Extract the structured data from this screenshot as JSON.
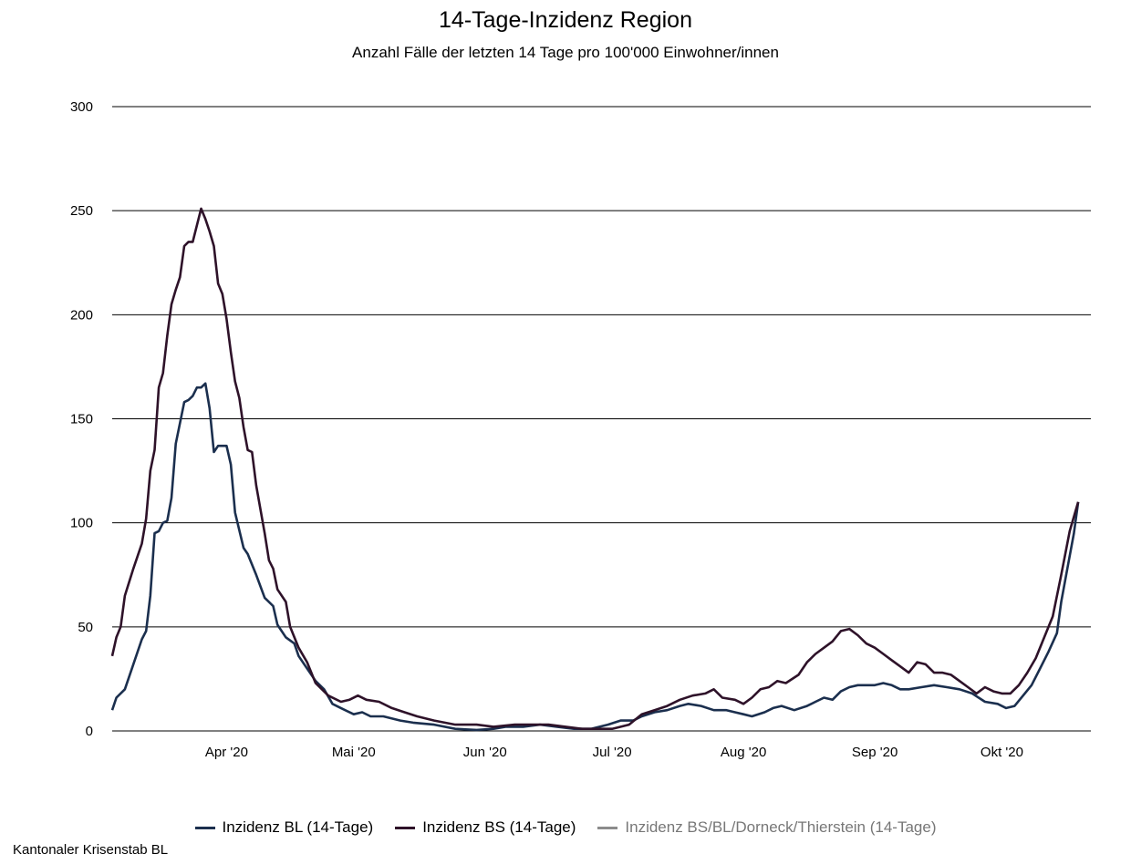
{
  "chart_data": {
    "type": "line",
    "title": "14-Tage-Inzidenz Region",
    "subtitle": "Anzahl Fälle der letzten 14 Tage pro 100'000 Einwohner/innen",
    "xlabel": "",
    "ylabel": "",
    "x_range": [
      "2020-03-05",
      "2020-10-22"
    ],
    "ylim": [
      0,
      300
    ],
    "y_ticks": [
      0,
      50,
      100,
      150,
      200,
      250,
      300
    ],
    "x_ticks": [
      {
        "date": "2020-04-01",
        "label": "Apr '20"
      },
      {
        "date": "2020-05-01",
        "label": "Mai '20"
      },
      {
        "date": "2020-06-01",
        "label": "Jun '20"
      },
      {
        "date": "2020-07-01",
        "label": "Jul '20"
      },
      {
        "date": "2020-08-01",
        "label": "Aug '20"
      },
      {
        "date": "2020-09-01",
        "label": "Sep '20"
      },
      {
        "date": "2020-10-01",
        "label": "Okt '20"
      }
    ],
    "grid": "horizontal",
    "legend_position": "bottom",
    "series": [
      {
        "name": "Inzidenz BL (14-Tage)",
        "color": "#1b2f4e",
        "points": [
          [
            "2020-03-05",
            10
          ],
          [
            "2020-03-06",
            16
          ],
          [
            "2020-03-08",
            20
          ],
          [
            "2020-03-10",
            32
          ],
          [
            "2020-03-12",
            44
          ],
          [
            "2020-03-13",
            48
          ],
          [
            "2020-03-14",
            65
          ],
          [
            "2020-03-15",
            95
          ],
          [
            "2020-03-16",
            96
          ],
          [
            "2020-03-17",
            100
          ],
          [
            "2020-03-18",
            101
          ],
          [
            "2020-03-19",
            112
          ],
          [
            "2020-03-20",
            138
          ],
          [
            "2020-03-22",
            158
          ],
          [
            "2020-03-23",
            159
          ],
          [
            "2020-03-24",
            161
          ],
          [
            "2020-03-25",
            165
          ],
          [
            "2020-03-26",
            165
          ],
          [
            "2020-03-27",
            167
          ],
          [
            "2020-03-28",
            155
          ],
          [
            "2020-03-29",
            134
          ],
          [
            "2020-03-30",
            137
          ],
          [
            "2020-04-01",
            137
          ],
          [
            "2020-04-02",
            128
          ],
          [
            "2020-04-03",
            105
          ],
          [
            "2020-04-05",
            88
          ],
          [
            "2020-04-06",
            85
          ],
          [
            "2020-04-08",
            75
          ],
          [
            "2020-04-10",
            64
          ],
          [
            "2020-04-12",
            60
          ],
          [
            "2020-04-13",
            51
          ],
          [
            "2020-04-15",
            45
          ],
          [
            "2020-04-17",
            42
          ],
          [
            "2020-04-18",
            36
          ],
          [
            "2020-04-20",
            30
          ],
          [
            "2020-04-22",
            24
          ],
          [
            "2020-04-24",
            20
          ],
          [
            "2020-04-26",
            13
          ],
          [
            "2020-04-28",
            11
          ],
          [
            "2020-05-01",
            8
          ],
          [
            "2020-05-03",
            9
          ],
          [
            "2020-05-05",
            7
          ],
          [
            "2020-05-08",
            7
          ],
          [
            "2020-05-12",
            5
          ],
          [
            "2020-05-15",
            4
          ],
          [
            "2020-05-20",
            3
          ],
          [
            "2020-05-25",
            1
          ],
          [
            "2020-05-30",
            0.5
          ],
          [
            "2020-06-03",
            1
          ],
          [
            "2020-06-06",
            2
          ],
          [
            "2020-06-10",
            2
          ],
          [
            "2020-06-14",
            3
          ],
          [
            "2020-06-18",
            2
          ],
          [
            "2020-06-22",
            1
          ],
          [
            "2020-06-26",
            1
          ],
          [
            "2020-06-30",
            3
          ],
          [
            "2020-07-03",
            5
          ],
          [
            "2020-07-06",
            5
          ],
          [
            "2020-07-08",
            7
          ],
          [
            "2020-07-11",
            9
          ],
          [
            "2020-07-14",
            10
          ],
          [
            "2020-07-17",
            12
          ],
          [
            "2020-07-19",
            13
          ],
          [
            "2020-07-22",
            12
          ],
          [
            "2020-07-25",
            10
          ],
          [
            "2020-07-28",
            10
          ],
          [
            "2020-07-30",
            9
          ],
          [
            "2020-08-01",
            8
          ],
          [
            "2020-08-03",
            7
          ],
          [
            "2020-08-06",
            9
          ],
          [
            "2020-08-08",
            11
          ],
          [
            "2020-08-10",
            12
          ],
          [
            "2020-08-13",
            10
          ],
          [
            "2020-08-16",
            12
          ],
          [
            "2020-08-18",
            14
          ],
          [
            "2020-08-20",
            16
          ],
          [
            "2020-08-22",
            15
          ],
          [
            "2020-08-24",
            19
          ],
          [
            "2020-08-26",
            21
          ],
          [
            "2020-08-28",
            22
          ],
          [
            "2020-08-30",
            22
          ],
          [
            "2020-09-01",
            22
          ],
          [
            "2020-09-03",
            23
          ],
          [
            "2020-09-05",
            22
          ],
          [
            "2020-09-07",
            20
          ],
          [
            "2020-09-09",
            20
          ],
          [
            "2020-09-12",
            21
          ],
          [
            "2020-09-15",
            22
          ],
          [
            "2020-09-18",
            21
          ],
          [
            "2020-09-21",
            20
          ],
          [
            "2020-09-24",
            18
          ],
          [
            "2020-09-27",
            14
          ],
          [
            "2020-09-30",
            13
          ],
          [
            "2020-10-02",
            11
          ],
          [
            "2020-10-04",
            12
          ],
          [
            "2020-10-06",
            17
          ],
          [
            "2020-10-08",
            22
          ],
          [
            "2020-10-10",
            30
          ],
          [
            "2020-10-12",
            38
          ],
          [
            "2020-10-14",
            47
          ],
          [
            "2020-10-15",
            62
          ],
          [
            "2020-10-16",
            73
          ],
          [
            "2020-10-18",
            95
          ],
          [
            "2020-10-19",
            110
          ]
        ]
      },
      {
        "name": "Inzidenz BS (14-Tage)",
        "color": "#2e1229",
        "points": [
          [
            "2020-03-05",
            36
          ],
          [
            "2020-03-06",
            45
          ],
          [
            "2020-03-07",
            50
          ],
          [
            "2020-03-08",
            65
          ],
          [
            "2020-03-10",
            78
          ],
          [
            "2020-03-12",
            90
          ],
          [
            "2020-03-13",
            102
          ],
          [
            "2020-03-14",
            125
          ],
          [
            "2020-03-15",
            135
          ],
          [
            "2020-03-16",
            165
          ],
          [
            "2020-03-17",
            172
          ],
          [
            "2020-03-18",
            190
          ],
          [
            "2020-03-19",
            205
          ],
          [
            "2020-03-20",
            212
          ],
          [
            "2020-03-21",
            218
          ],
          [
            "2020-03-22",
            233
          ],
          [
            "2020-03-23",
            235
          ],
          [
            "2020-03-24",
            235
          ],
          [
            "2020-03-26",
            251
          ],
          [
            "2020-03-27",
            246
          ],
          [
            "2020-03-28",
            240
          ],
          [
            "2020-03-29",
            233
          ],
          [
            "2020-03-30",
            215
          ],
          [
            "2020-03-31",
            210
          ],
          [
            "2020-04-01",
            198
          ],
          [
            "2020-04-02",
            182
          ],
          [
            "2020-04-03",
            168
          ],
          [
            "2020-04-04",
            160
          ],
          [
            "2020-04-05",
            146
          ],
          [
            "2020-04-06",
            135
          ],
          [
            "2020-04-07",
            134
          ],
          [
            "2020-04-08",
            118
          ],
          [
            "2020-04-10",
            95
          ],
          [
            "2020-04-11",
            82
          ],
          [
            "2020-04-12",
            78
          ],
          [
            "2020-04-13",
            68
          ],
          [
            "2020-04-15",
            62
          ],
          [
            "2020-04-16",
            50
          ],
          [
            "2020-04-18",
            40
          ],
          [
            "2020-04-20",
            33
          ],
          [
            "2020-04-22",
            23
          ],
          [
            "2020-04-25",
            17
          ],
          [
            "2020-04-28",
            14
          ],
          [
            "2020-04-30",
            15
          ],
          [
            "2020-05-02",
            17
          ],
          [
            "2020-05-04",
            15
          ],
          [
            "2020-05-07",
            14
          ],
          [
            "2020-05-10",
            11
          ],
          [
            "2020-05-13",
            9
          ],
          [
            "2020-05-16",
            7
          ],
          [
            "2020-05-20",
            5
          ],
          [
            "2020-05-25",
            3
          ],
          [
            "2020-05-30",
            3
          ],
          [
            "2020-06-03",
            2
          ],
          [
            "2020-06-08",
            3
          ],
          [
            "2020-06-12",
            3
          ],
          [
            "2020-06-16",
            3
          ],
          [
            "2020-06-20",
            2
          ],
          [
            "2020-06-24",
            1
          ],
          [
            "2020-06-28",
            1
          ],
          [
            "2020-07-01",
            1
          ],
          [
            "2020-07-05",
            3
          ],
          [
            "2020-07-08",
            8
          ],
          [
            "2020-07-11",
            10
          ],
          [
            "2020-07-14",
            12
          ],
          [
            "2020-07-17",
            15
          ],
          [
            "2020-07-20",
            17
          ],
          [
            "2020-07-23",
            18
          ],
          [
            "2020-07-25",
            20
          ],
          [
            "2020-07-27",
            16
          ],
          [
            "2020-07-30",
            15
          ],
          [
            "2020-08-01",
            13
          ],
          [
            "2020-08-03",
            16
          ],
          [
            "2020-08-05",
            20
          ],
          [
            "2020-08-07",
            21
          ],
          [
            "2020-08-09",
            24
          ],
          [
            "2020-08-11",
            23
          ],
          [
            "2020-08-14",
            27
          ],
          [
            "2020-08-16",
            33
          ],
          [
            "2020-08-18",
            37
          ],
          [
            "2020-08-20",
            40
          ],
          [
            "2020-08-22",
            43
          ],
          [
            "2020-08-24",
            48
          ],
          [
            "2020-08-26",
            49
          ],
          [
            "2020-08-28",
            46
          ],
          [
            "2020-08-30",
            42
          ],
          [
            "2020-09-01",
            40
          ],
          [
            "2020-09-03",
            37
          ],
          [
            "2020-09-05",
            34
          ],
          [
            "2020-09-07",
            31
          ],
          [
            "2020-09-09",
            28
          ],
          [
            "2020-09-11",
            33
          ],
          [
            "2020-09-13",
            32
          ],
          [
            "2020-09-15",
            28
          ],
          [
            "2020-09-17",
            28
          ],
          [
            "2020-09-19",
            27
          ],
          [
            "2020-09-21",
            24
          ],
          [
            "2020-09-23",
            21
          ],
          [
            "2020-09-25",
            18
          ],
          [
            "2020-09-27",
            21
          ],
          [
            "2020-09-29",
            19
          ],
          [
            "2020-10-01",
            18
          ],
          [
            "2020-10-03",
            18
          ],
          [
            "2020-10-05",
            22
          ],
          [
            "2020-10-07",
            28
          ],
          [
            "2020-10-09",
            35
          ],
          [
            "2020-10-11",
            45
          ],
          [
            "2020-10-13",
            55
          ],
          [
            "2020-10-15",
            75
          ],
          [
            "2020-10-17",
            96
          ],
          [
            "2020-10-19",
            110
          ]
        ]
      },
      {
        "name": "Inzidenz BS/BL/Dorneck/Thierstein (14-Tage)",
        "color": "#8c8c8c",
        "points": []
      }
    ]
  },
  "footer": "Kantonaler Krisenstab BL"
}
